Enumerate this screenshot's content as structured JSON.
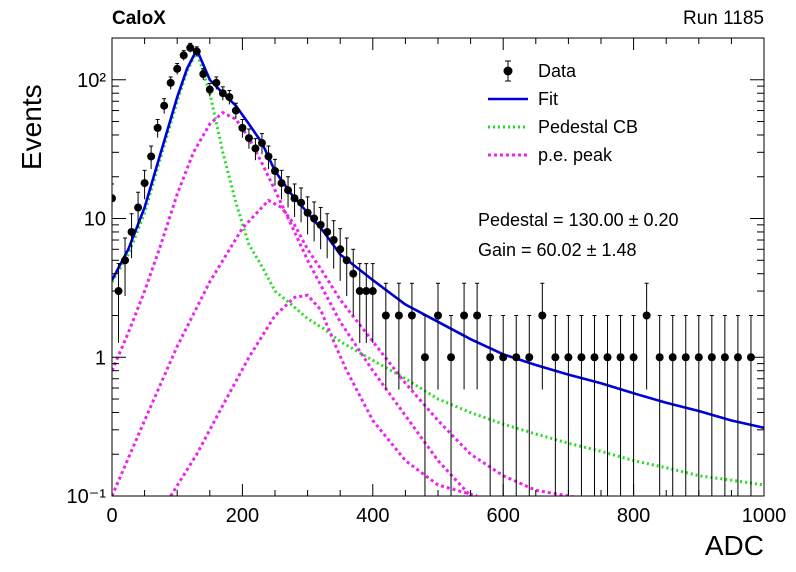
{
  "header": {
    "experiment": "CaloX",
    "run": "Run 1185"
  },
  "fit_info": {
    "pedestal": "Pedestal = 130.00 ± 0.20",
    "gain": "Gain = 60.02 ± 1.48"
  },
  "chart_data": {
    "type": "scatter",
    "xlabel": "ADC",
    "ylabel": "Events",
    "xlim": [
      0,
      1000
    ],
    "ylim": [
      0.1,
      200
    ],
    "yscale": "log",
    "xticks": [
      0,
      200,
      400,
      600,
      800,
      1000
    ],
    "yticks": [
      {
        "value": 0.1,
        "label": "10⁻¹"
      },
      {
        "value": 1,
        "label": "1"
      },
      {
        "value": 10,
        "label": "10"
      },
      {
        "value": 100,
        "label": "10²"
      }
    ],
    "legend": [
      "Data",
      "Fit",
      "Pedestal CB",
      "p.e. peak"
    ],
    "legend_position": "top-right",
    "colors": {
      "data": "#000000",
      "fit": "#0000dd",
      "pedestal": "#22dd22",
      "pe": "#ee22ee"
    },
    "data_points": {
      "x": [
        0,
        10,
        20,
        30,
        40,
        50,
        60,
        70,
        80,
        90,
        100,
        110,
        120,
        130,
        140,
        150,
        160,
        170,
        180,
        190,
        200,
        210,
        220,
        230,
        240,
        250,
        260,
        270,
        280,
        290,
        300,
        310,
        320,
        330,
        340,
        350,
        360,
        370,
        380,
        390,
        400,
        420,
        440,
        460,
        480,
        500,
        520,
        540,
        560,
        580,
        600,
        620,
        640,
        660,
        680,
        700,
        720,
        740,
        760,
        780,
        800,
        820,
        840,
        860,
        880,
        900,
        920,
        940,
        960,
        980
      ],
      "y": [
        14,
        3,
        5,
        8,
        12,
        18,
        28,
        45,
        65,
        95,
        120,
        150,
        170,
        160,
        110,
        85,
        95,
        80,
        75,
        60,
        45,
        38,
        32,
        35,
        28,
        22,
        18,
        16,
        14,
        13,
        11,
        10,
        9,
        8,
        7,
        6,
        5,
        4,
        3,
        3,
        3,
        2,
        2,
        2,
        1,
        2,
        1,
        2,
        2,
        1,
        1,
        1,
        1,
        2,
        1,
        1,
        1,
        1,
        1,
        1,
        1,
        2,
        1,
        1,
        1,
        1,
        1,
        1,
        1,
        1
      ]
    },
    "series": [
      {
        "name": "Fit",
        "x": [
          0,
          25,
          50,
          75,
          100,
          115,
          130,
          150,
          170,
          190,
          210,
          230,
          250,
          275,
          300,
          325,
          350,
          400,
          450,
          500,
          550,
          600,
          650,
          700,
          750,
          800,
          850,
          900,
          950,
          1000
        ],
        "y": [
          3.6,
          6,
          12,
          30,
          75,
          120,
          165,
          100,
          80,
          65,
          48,
          35,
          22,
          15,
          11,
          8,
          5.5,
          3.6,
          2.4,
          1.8,
          1.35,
          1.05,
          0.88,
          0.75,
          0.65,
          0.55,
          0.47,
          0.41,
          0.35,
          0.31
        ]
      },
      {
        "name": "Pedestal CB",
        "x": [
          0,
          25,
          50,
          75,
          100,
          115,
          130,
          150,
          170,
          190,
          210,
          230,
          250,
          275,
          300,
          325,
          350,
          400,
          450,
          500,
          550,
          600,
          650,
          700,
          750,
          800,
          850,
          900,
          950,
          1000
        ],
        "y": [
          3.5,
          5.5,
          11,
          28,
          70,
          115,
          160,
          80,
          30,
          13,
          6.5,
          4.5,
          3,
          2.4,
          1.9,
          1.6,
          1.3,
          0.95,
          0.7,
          0.5,
          0.4,
          0.33,
          0.28,
          0.24,
          0.21,
          0.18,
          0.16,
          0.14,
          0.13,
          0.12
        ]
      },
      {
        "name": "p.e. peak",
        "x": [
          0,
          25,
          50,
          75,
          100,
          125,
          150,
          170,
          190,
          210,
          230,
          250,
          275,
          300,
          325,
          350,
          400,
          450,
          500,
          550
        ],
        "y": [
          0.8,
          1.5,
          3,
          6.5,
          15,
          30,
          48,
          58,
          52,
          38,
          25,
          16,
          9,
          5,
          3,
          1.8,
          0.8,
          0.38,
          0.18,
          0.1
        ]
      },
      {
        "name": "p.e. peak",
        "x": [
          0,
          50,
          100,
          150,
          200,
          240,
          260,
          280,
          300,
          325,
          350,
          400,
          450,
          500,
          550,
          600,
          650,
          700,
          760
        ],
        "y": [
          0.1,
          0.35,
          1.2,
          3.5,
          8.5,
          13.5,
          12,
          9,
          6,
          4,
          2.6,
          1.3,
          0.65,
          0.35,
          0.2,
          0.14,
          0.11,
          0.1,
          0.09
        ]
      },
      {
        "name": "p.e. peak",
        "x": [
          90,
          130,
          170,
          210,
          250,
          280,
          300,
          320,
          340,
          360,
          400,
          450,
          500,
          560
        ],
        "y": [
          0.1,
          0.2,
          0.45,
          1,
          2,
          2.7,
          2.8,
          2.2,
          1.3,
          0.8,
          0.35,
          0.18,
          0.12,
          0.1
        ]
      }
    ]
  }
}
